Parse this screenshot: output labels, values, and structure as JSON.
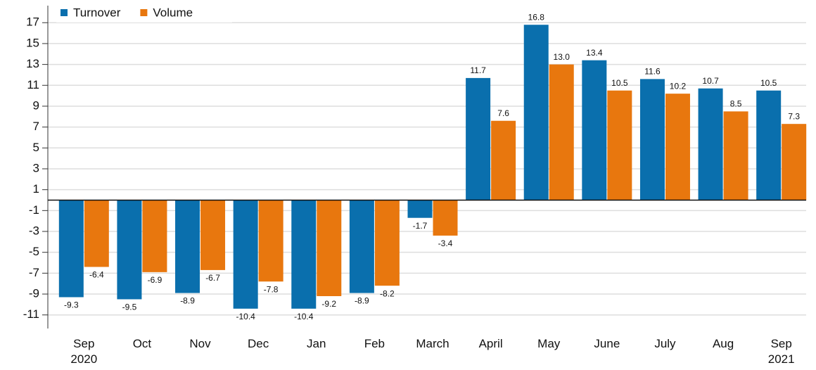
{
  "chart_data": {
    "type": "bar",
    "categories": [
      "Sep 2020",
      "Oct",
      "Nov",
      "Dec",
      "Jan",
      "Feb",
      "March",
      "April",
      "May",
      "June",
      "July",
      "Aug",
      "Sep 2021"
    ],
    "series": [
      {
        "name": "Turnover",
        "color": "#0a6fad",
        "values": [
          -9.3,
          -9.5,
          -8.9,
          -10.4,
          -10.4,
          -8.9,
          -1.7,
          11.7,
          16.8,
          13.4,
          11.6,
          10.7,
          10.5
        ]
      },
      {
        "name": "Volume",
        "color": "#e8770e",
        "values": [
          -6.4,
          -6.9,
          -6.7,
          -7.8,
          -9.2,
          -8.2,
          -3.4,
          7.6,
          13.0,
          10.5,
          10.2,
          8.5,
          7.3
        ],
        "value_labels": [
          "-6.4",
          "-6.9",
          "-6.7",
          "-7.8",
          "-9.2",
          "-8.2",
          "-3.4",
          "7.6",
          "13.0",
          "10.5",
          "10.2",
          "8.5",
          "7.3"
        ]
      }
    ],
    "ylim": [
      -12.3,
      18.5
    ],
    "yticks": [
      -11,
      -9,
      -7,
      -5,
      -3,
      -1,
      1,
      3,
      5,
      7,
      9,
      11,
      13,
      15,
      17
    ],
    "grid": true,
    "legend": "top-left"
  }
}
